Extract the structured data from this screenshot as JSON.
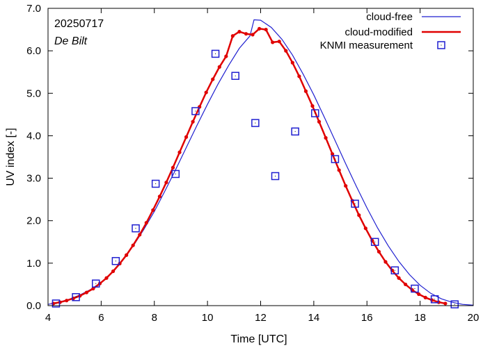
{
  "chart_data": {
    "type": "line",
    "xlabel": "Time  [UTC]",
    "ylabel": "UV index  [-]",
    "xlim": [
      4,
      20
    ],
    "ylim": [
      0,
      7
    ],
    "x_ticks": [
      "4",
      "6",
      "8",
      "10",
      "12",
      "14",
      "16",
      "18",
      "20"
    ],
    "y_ticks": [
      "0.0",
      "1.0",
      "2.0",
      "3.0",
      "4.0",
      "5.0",
      "6.0",
      "7.0"
    ],
    "annotations": {
      "date": "20250717",
      "location": "De Bilt"
    },
    "colors": {
      "cloud_free": "#1f1fd0",
      "cloud_modified": "#e00000",
      "knmi": "#1f1fd0"
    },
    "series": [
      {
        "name": "cloud-free",
        "style": "thin-line",
        "x": [
          4.0,
          4.4,
          4.8,
          5.2,
          5.6,
          6.0,
          6.4,
          6.8,
          7.2,
          7.6,
          8.0,
          8.4,
          8.8,
          9.2,
          9.6,
          10.0,
          10.4,
          10.8,
          11.2,
          11.6,
          11.75,
          12.0,
          12.4,
          12.8,
          13.2,
          13.6,
          14.0,
          14.4,
          14.8,
          15.2,
          15.6,
          16.0,
          16.4,
          16.8,
          17.2,
          17.6,
          18.0,
          18.4,
          18.8,
          19.2,
          19.6,
          20.0
        ],
        "values": [
          0.03,
          0.08,
          0.15,
          0.25,
          0.38,
          0.55,
          0.78,
          1.06,
          1.4,
          1.79,
          2.22,
          2.7,
          3.2,
          3.72,
          4.24,
          4.74,
          5.22,
          5.66,
          6.06,
          6.35,
          6.73,
          6.72,
          6.55,
          6.27,
          5.9,
          5.45,
          4.96,
          4.43,
          3.89,
          3.34,
          2.81,
          2.3,
          1.83,
          1.41,
          1.04,
          0.73,
          0.48,
          0.29,
          0.16,
          0.08,
          0.03,
          0.01
        ]
      },
      {
        "name": "cloud-modified",
        "style": "thick-line-with-dots",
        "x": [
          4.2,
          4.45,
          4.7,
          4.95,
          5.2,
          5.45,
          5.7,
          5.95,
          6.2,
          6.45,
          6.7,
          6.95,
          7.2,
          7.45,
          7.7,
          7.95,
          8.2,
          8.45,
          8.7,
          8.95,
          9.2,
          9.45,
          9.7,
          9.95,
          10.2,
          10.45,
          10.7,
          10.95,
          11.2,
          11.45,
          11.7,
          11.95,
          12.2,
          12.45,
          12.7,
          12.95,
          13.2,
          13.45,
          13.7,
          13.95,
          14.2,
          14.45,
          14.7,
          14.95,
          15.2,
          15.45,
          15.7,
          15.95,
          16.2,
          16.45,
          16.7,
          16.95,
          17.2,
          17.45,
          17.7,
          17.95,
          18.2,
          18.45,
          18.7,
          18.95
        ],
        "values": [
          0.05,
          0.08,
          0.12,
          0.17,
          0.23,
          0.31,
          0.4,
          0.52,
          0.65,
          0.81,
          0.99,
          1.19,
          1.42,
          1.67,
          1.95,
          2.25,
          2.57,
          2.9,
          3.25,
          3.61,
          3.97,
          4.33,
          4.68,
          5.02,
          5.33,
          5.62,
          5.87,
          6.35,
          6.45,
          6.4,
          6.38,
          6.52,
          6.5,
          6.2,
          6.22,
          6.0,
          5.72,
          5.4,
          5.05,
          4.7,
          4.33,
          3.95,
          3.57,
          3.19,
          2.82,
          2.47,
          2.13,
          1.82,
          1.53,
          1.27,
          1.03,
          0.83,
          0.65,
          0.5,
          0.37,
          0.27,
          0.19,
          0.13,
          0.08,
          0.05
        ]
      },
      {
        "name": "KNMI measurement",
        "style": "open-squares",
        "x": [
          4.3,
          5.05,
          5.8,
          6.55,
          7.3,
          8.05,
          8.8,
          9.55,
          10.3,
          11.05,
          11.8,
          12.55,
          13.3,
          14.05,
          14.8,
          15.55,
          16.3,
          17.05,
          17.8,
          18.55,
          19.3
        ],
        "values": [
          0.05,
          0.2,
          0.52,
          1.05,
          1.82,
          2.87,
          3.1,
          4.58,
          5.93,
          5.41,
          4.3,
          3.05,
          4.1,
          4.53,
          3.45,
          2.4,
          1.5,
          0.83,
          0.4,
          0.15,
          0.03
        ]
      }
    ],
    "legend": {
      "position": "top-right",
      "entries": [
        "cloud-free",
        "cloud-modified",
        "KNMI measurement"
      ]
    }
  }
}
